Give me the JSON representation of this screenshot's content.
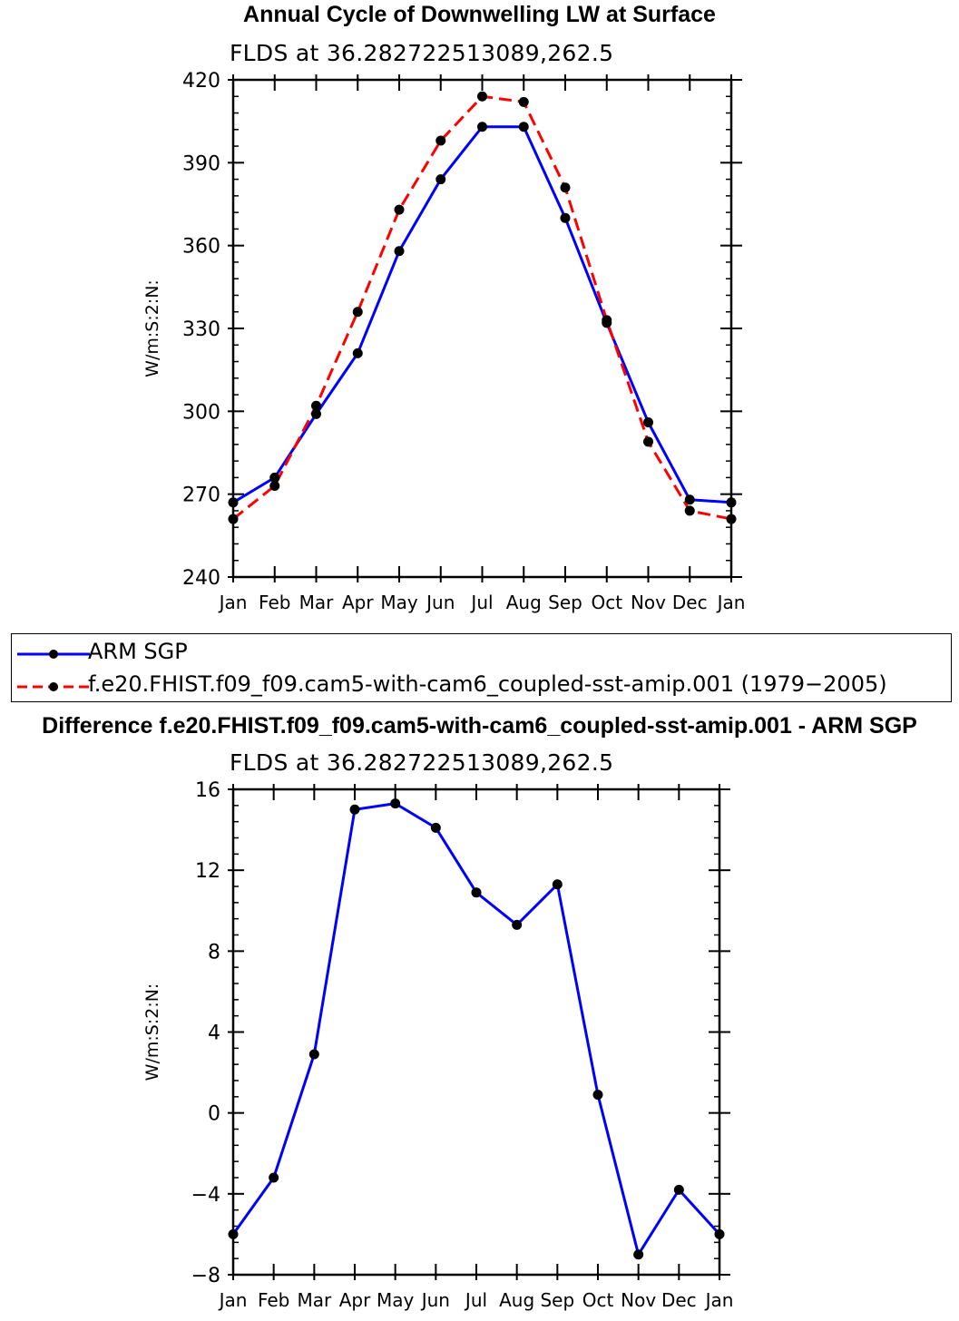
{
  "chart_data": [
    {
      "type": "line",
      "title": "Annual Cycle of Downwelling LW at Surface",
      "subtitle": "FLDS at 36.282722513089,262.5",
      "ylabel": "W/m:S:2:N:",
      "xlabel": "",
      "categories": [
        "Jan",
        "Feb",
        "Mar",
        "Apr",
        "May",
        "Jun",
        "Jul",
        "Aug",
        "Sep",
        "Oct",
        "Nov",
        "Dec",
        "Jan"
      ],
      "ylim": [
        240,
        420
      ],
      "yticks": [
        "240",
        "270",
        "300",
        "330",
        "360",
        "390",
        "420"
      ],
      "series": [
        {
          "name": "ARM SGP",
          "color": "#0000ff",
          "dash": "solid",
          "values": [
            267,
            276,
            299,
            321,
            358,
            384,
            403,
            403,
            370,
            332,
            296,
            268,
            267
          ]
        },
        {
          "name": "f.e20.FHIST.f09_f09.cam5-with-cam6_coupled-sst-amip.001 (1979−2005)",
          "color": "#ff0000",
          "dash": "dashed",
          "values": [
            261,
            273,
            302,
            336,
            373,
            398,
            414,
            412,
            381,
            333,
            289,
            264,
            261
          ]
        }
      ]
    },
    {
      "type": "line",
      "title": "Difference f.e20.FHIST.f09_f09.cam5-with-cam6_coupled-sst-amip.001 - ARM SGP",
      "subtitle": "FLDS at 36.282722513089,262.5",
      "ylabel": "W/m:S:2:N:",
      "xlabel": "",
      "categories": [
        "Jan",
        "Feb",
        "Mar",
        "Apr",
        "May",
        "Jun",
        "Jul",
        "Aug",
        "Sep",
        "Oct",
        "Nov",
        "Dec",
        "Jan"
      ],
      "ylim": [
        -8,
        16
      ],
      "yticks": [
        "−8",
        "−4",
        "0",
        "4",
        "8",
        "12",
        "16"
      ],
      "series": [
        {
          "name": "Difference",
          "color": "#0000ff",
          "dash": "solid",
          "values": [
            -6,
            -3.2,
            2.9,
            15,
            15.3,
            14.1,
            10.9,
            9.3,
            11.3,
            0.9,
            -7,
            -3.8,
            -6
          ]
        }
      ]
    }
  ],
  "legend": {
    "entries": [
      {
        "label": "ARM SGP",
        "color": "#0000ff",
        "dash": "solid"
      },
      {
        "label": "f.e20.FHIST.f09_f09.cam5-with-cam6_coupled-sst-amip.001 (1979−2005)",
        "color": "#ff0000",
        "dash": "dashed"
      }
    ]
  }
}
